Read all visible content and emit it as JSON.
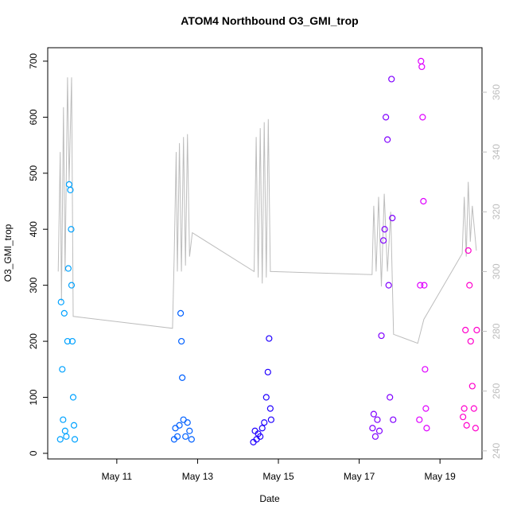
{
  "chart_data": {
    "type": "scatter",
    "title": "ATOM4 Northbound O3_GMI_trop",
    "x_label": "Date",
    "y_label": "O3_GMI_trop",
    "xlim": [
      9.29,
      20.04
    ],
    "xticks": [
      {
        "value": 11,
        "label": "May 11"
      },
      {
        "value": 13,
        "label": "May 13"
      },
      {
        "value": 15,
        "label": "May 15"
      },
      {
        "value": 17,
        "label": "May 17"
      },
      {
        "value": 19,
        "label": "May 19"
      }
    ],
    "ylim": [
      -10,
      724
    ],
    "yticks": [
      0,
      100,
      200,
      300,
      400,
      500,
      600,
      700
    ],
    "y2lim": [
      237.3,
      374.9
    ],
    "y2ticks": [
      240,
      260,
      280,
      300,
      320,
      340,
      360
    ],
    "y2_color": "#bdbdbd",
    "series": [
      {
        "mode": "line",
        "axis": "y2",
        "color": "#bdbdbd",
        "x": [
          9.55,
          9.6,
          9.63,
          9.68,
          9.72,
          9.78,
          9.82,
          9.88,
          9.92,
          12.38,
          12.42,
          12.47,
          12.5,
          12.55,
          12.6,
          12.65,
          12.7,
          12.75,
          12.8,
          12.87,
          14.4,
          14.45,
          14.5,
          14.55,
          14.6,
          14.65,
          14.7,
          14.75,
          14.8,
          14.85,
          17.32,
          17.36,
          17.42,
          17.48,
          17.55,
          17.62,
          17.7,
          17.78,
          17.85,
          18.45,
          18.6,
          19.55,
          19.6,
          19.65,
          19.7,
          19.75,
          19.8,
          19.9
        ],
        "values": [
          300,
          340,
          290,
          355,
          300,
          365,
          330,
          365,
          285,
          281,
          305,
          340,
          300,
          343,
          300,
          345,
          302,
          346,
          305,
          313,
          300,
          345,
          298,
          348,
          296,
          350,
          298,
          351,
          300,
          300,
          299,
          322,
          300,
          325,
          295,
          326,
          300,
          320,
          279,
          276,
          284,
          306,
          325,
          305,
          330,
          310,
          322,
          307
        ]
      },
      {
        "mode": "points",
        "color": "#00a2ff",
        "x": [
          9.6,
          9.62,
          9.65,
          9.67,
          9.7,
          9.72,
          9.75,
          9.78,
          9.8,
          9.82,
          9.85,
          9.87,
          9.88,
          9.9,
          9.92,
          9.94,
          9.96
        ],
        "values": [
          25,
          270,
          150,
          60,
          250,
          40,
          30,
          200,
          330,
          480,
          470,
          400,
          300,
          200,
          100,
          50,
          25
        ]
      },
      {
        "mode": "points",
        "color": "#0060ff",
        "x": [
          12.42,
          12.45,
          12.5,
          12.55,
          12.58,
          12.6,
          12.62,
          12.65,
          12.7,
          12.75,
          12.8,
          12.85
        ],
        "values": [
          25,
          45,
          30,
          50,
          250,
          200,
          135,
          60,
          30,
          55,
          40,
          25
        ]
      },
      {
        "mode": "points",
        "color": "#2000ff",
        "x": [
          14.38,
          14.42,
          14.46,
          14.5,
          14.55,
          14.6,
          14.65,
          14.7,
          14.74,
          14.77,
          14.8,
          14.82
        ],
        "values": [
          20,
          40,
          25,
          35,
          30,
          45,
          55,
          100,
          145,
          205,
          80,
          60
        ]
      },
      {
        "mode": "points",
        "color": "#8000ff",
        "x": [
          17.33,
          17.36,
          17.4,
          17.45,
          17.5,
          17.55,
          17.6,
          17.63,
          17.66,
          17.7,
          17.73,
          17.76,
          17.8,
          17.82,
          17.84
        ],
        "values": [
          45,
          70,
          30,
          60,
          40,
          210,
          380,
          400,
          600,
          560,
          300,
          100,
          668,
          420,
          60
        ]
      },
      {
        "mode": "points",
        "color": "#df00ff",
        "x": [
          18.49,
          18.51,
          18.53,
          18.55,
          18.57,
          18.59,
          18.61,
          18.63,
          18.65,
          18.67
        ],
        "values": [
          60,
          300,
          700,
          690,
          600,
          450,
          300,
          150,
          80,
          45
        ]
      },
      {
        "mode": "points",
        "color": "#ff00cc",
        "x": [
          19.57,
          19.6,
          19.63,
          19.66,
          19.7,
          19.73,
          19.76,
          19.8,
          19.84,
          19.88,
          19.91
        ],
        "values": [
          65,
          80,
          220,
          50,
          362,
          300,
          200,
          120,
          80,
          45,
          220
        ]
      }
    ]
  }
}
